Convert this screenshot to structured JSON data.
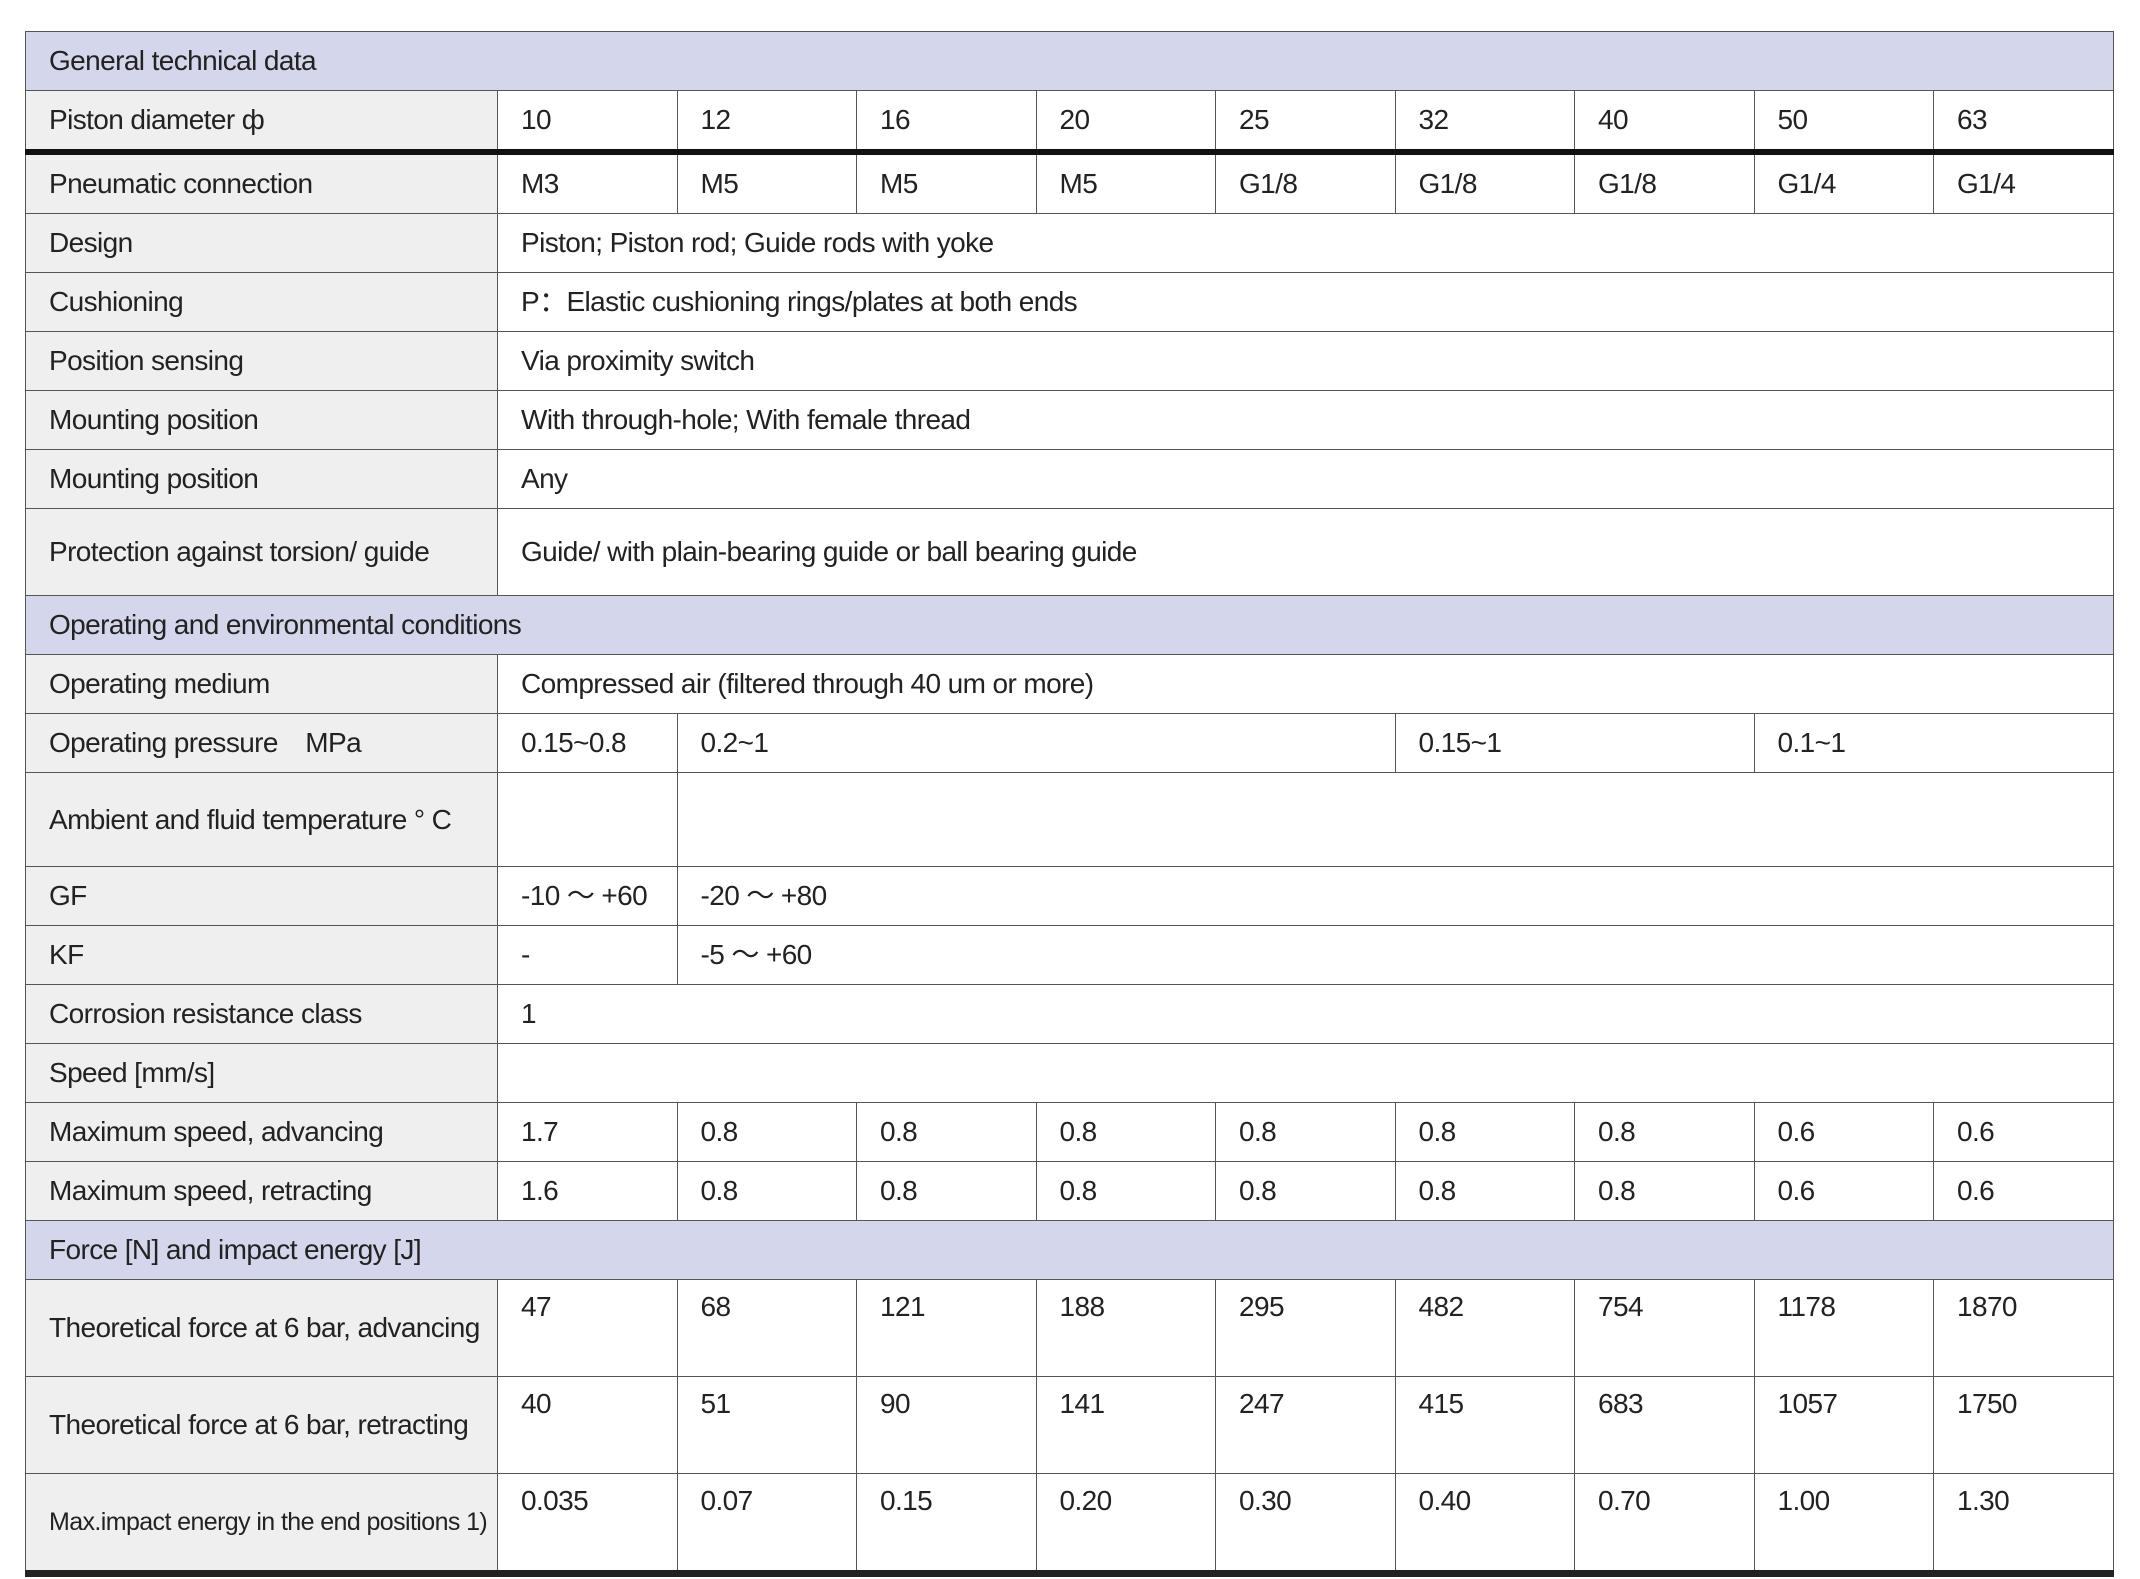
{
  "sections": {
    "general": "General technical data",
    "operating": "Operating and environmental conditions",
    "force": "Force [N] and impact energy [J]"
  },
  "piston": {
    "label": "Piston diameter ф",
    "values": [
      "10",
      "12",
      "16",
      "20",
      "25",
      "32",
      "40",
      "50",
      "63"
    ]
  },
  "pneumatic": {
    "label": "Pneumatic connection",
    "values": [
      "M3",
      "M5",
      "M5",
      "M5",
      "G1/8",
      "G1/8",
      "G1/8",
      "G1/4",
      "G1/4"
    ]
  },
  "design": {
    "label": "Design",
    "value": "Piston; Piston rod; Guide rods with yoke"
  },
  "cushioning": {
    "label": "Cushioning",
    "value": "P：Elastic cushioning rings/plates at both ends"
  },
  "sensing": {
    "label": "Position sensing",
    "value": "Via proximity switch"
  },
  "mounting1": {
    "label": "Mounting position",
    "value": "With through-hole; With female thread"
  },
  "mounting2": {
    "label": "Mounting position",
    "value": "Any"
  },
  "torsion": {
    "label": "Protection against torsion/ guide",
    "value": "Guide/ with plain-bearing guide or ball bearing guide"
  },
  "medium": {
    "label": "Operating medium",
    "value": "Compressed air (filtered through 40 um or more)"
  },
  "pressure": {
    "label": "Operating pressure　MPa",
    "values": [
      "0.15~0.8",
      "0.2~1",
      "0.15~1",
      "0.1~1"
    ]
  },
  "temperature": {
    "label": "Ambient and fluid temperature ° C"
  },
  "gf": {
    "label": "GF",
    "values": [
      "-10 ～ +60",
      "-20 ～ +80"
    ]
  },
  "kf": {
    "label": "KF",
    "values": [
      "-",
      "-5 ～ +60"
    ]
  },
  "corrosion": {
    "label": "Corrosion resistance class",
    "value": "1"
  },
  "speed": {
    "label": "Speed [mm/s]"
  },
  "adv_speed": {
    "label": "Maximum speed, advancing",
    "values": [
      "1.7",
      "0.8",
      "0.8",
      "0.8",
      "0.8",
      "0.8",
      "0.8",
      "0.6",
      "0.6"
    ]
  },
  "ret_speed": {
    "label": "Maximum speed, retracting",
    "values": [
      "1.6",
      "0.8",
      "0.8",
      "0.8",
      "0.8",
      "0.8",
      "0.8",
      "0.6",
      "0.6"
    ]
  },
  "force_adv": {
    "label": "Theoretical force at 6 bar, advancing",
    "values": [
      "47",
      "68",
      "121",
      "188",
      "295",
      "482",
      "754",
      "1178",
      "1870"
    ]
  },
  "force_ret": {
    "label": "Theoretical force at 6 bar, retracting",
    "values": [
      "40",
      "51",
      "90",
      "141",
      "247",
      "415",
      "683",
      "1057",
      "1750"
    ]
  },
  "impact": {
    "label": "Max.impact energy in the end positions 1)",
    "values": [
      "0.035",
      "0.07",
      "0.15",
      "0.20",
      "0.30",
      "0.40",
      "0.70",
      "1.00",
      "1.30"
    ]
  }
}
